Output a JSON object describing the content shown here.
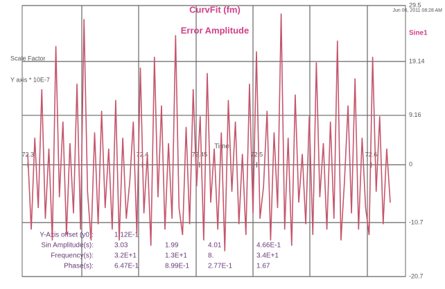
{
  "chart_data": {
    "type": "line",
    "title": "CurvFit (fm)",
    "subtitle": "Error Amplitude",
    "timestamp": "Jun 06, 2011 08:28 AM",
    "scale_note": [
      "Scale Factor",
      "Y axis * 10E-7"
    ],
    "x_label": "Time",
    "series": [
      {
        "name": "Sine1",
        "color": "#c4566c",
        "values": [
          2,
          -12,
          5,
          -8,
          14,
          -10,
          3,
          -14,
          22,
          -6,
          8,
          -13,
          4,
          -9,
          15,
          -12,
          27,
          -5,
          -14,
          6,
          -11,
          10,
          -8,
          3,
          -12,
          12,
          -14,
          5,
          -10,
          -3,
          8,
          -13,
          18,
          -9,
          2,
          -15,
          20,
          -6,
          11,
          -12,
          4,
          -10,
          24,
          -8,
          -13,
          7,
          -11,
          14,
          -4,
          9,
          -14,
          17,
          -7,
          3,
          -12,
          6,
          -16,
          12,
          -5,
          8,
          -11,
          2,
          -13,
          15,
          -9,
          21,
          -10,
          -4,
          10,
          -14,
          6,
          -8,
          28,
          -12,
          5,
          -15,
          13,
          -7,
          2,
          -11,
          9,
          -13,
          19,
          -6,
          4,
          -12,
          8,
          -10,
          23,
          -14,
          -3,
          11,
          -9,
          16,
          -12,
          5,
          -8,
          -13,
          20,
          -5,
          9,
          -11,
          3,
          -7
        ]
      }
    ],
    "xlim": [
      72.295,
      72.63
    ],
    "xticks": [
      72.3,
      72.4,
      72.45,
      72.5,
      72.6
    ],
    "ylim": [
      -20.7,
      29.5
    ],
    "yticks": [
      29.5,
      19.14,
      9.16,
      0,
      -10.7,
      -20.7
    ],
    "grid": true,
    "parameters": {
      "rows": [
        [
          "Y-Axis offset (y0):",
          "1.12E-1"
        ],
        [
          "Sin Amplitude(s):",
          "3.03",
          "1.99",
          "4.01",
          "4.66E-1"
        ],
        [
          "Frequency(s):",
          "3.2E+1",
          "1.3E+1",
          "8.",
          "3.4E+1"
        ],
        [
          "Phase(s):",
          "6.47E-1",
          "8.99E-1",
          "2.77E-1",
          "1.67"
        ]
      ]
    }
  }
}
